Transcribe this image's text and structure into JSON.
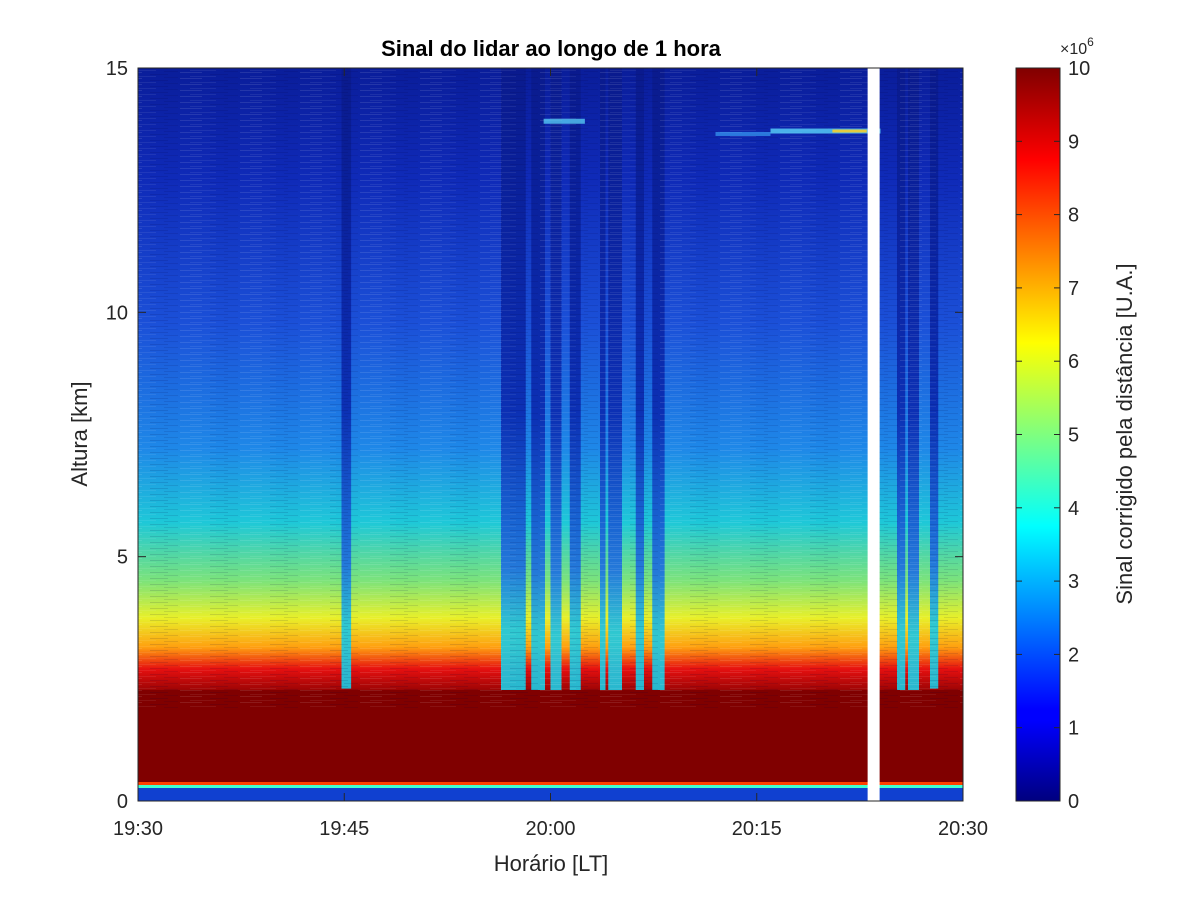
{
  "chart_data": {
    "type": "heatmap",
    "title": "Sinal do lidar ao longo de 1 hora",
    "xlabel": "Horário [LT]",
    "ylabel": "Altura [km]",
    "x_ticks": [
      "19:30",
      "19:45",
      "20:00",
      "20:15",
      "20:30"
    ],
    "x_tick_minutes": [
      0,
      15,
      30,
      45,
      60
    ],
    "x_range_minutes": [
      0,
      60
    ],
    "y_ticks": [
      "0",
      "5",
      "10",
      "15"
    ],
    "y_tick_values": [
      0,
      5,
      10,
      15
    ],
    "ylim": [
      0,
      15
    ],
    "colorbar": {
      "label": "Sinal corrigido pela distância [U.A.]",
      "multiplier_base": "×10",
      "multiplier_exponent": "6",
      "ticks": [
        "0",
        "1",
        "2",
        "3",
        "4",
        "5",
        "6",
        "7",
        "8",
        "9",
        "10"
      ],
      "range": [
        0,
        10
      ],
      "colormap": "jet"
    },
    "features": {
      "saturated_layer_bottom_km": 0.3,
      "saturated_layer_top_km": 2.5,
      "missing_data_minute": 53.5,
      "cirrus_layer_km": 13.7
    },
    "colors": {
      "saturated": "#800000",
      "low": "#00007f",
      "gap": "#ffffff"
    }
  }
}
